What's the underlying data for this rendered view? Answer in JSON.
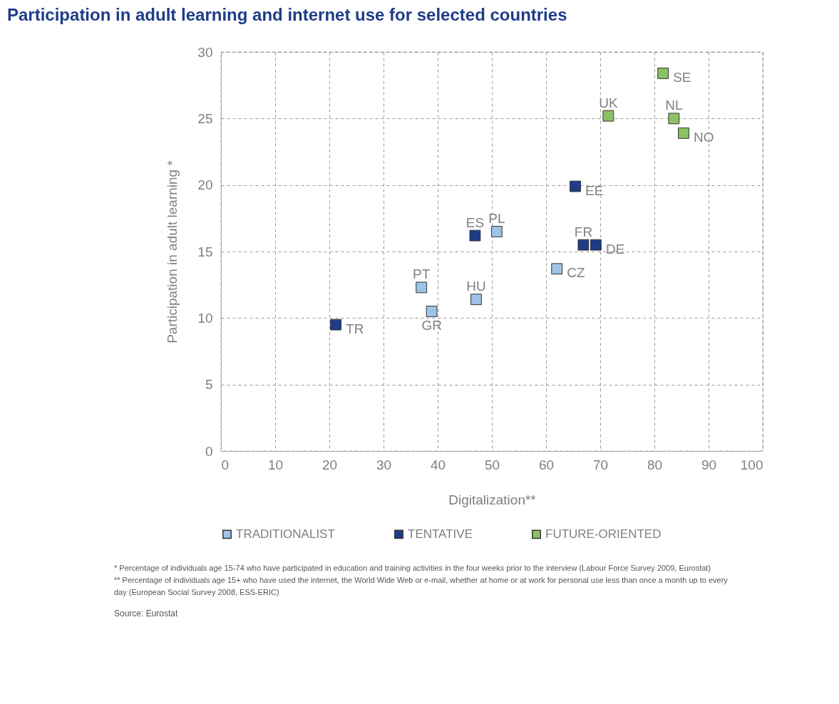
{
  "chart_data": {
    "type": "scatter",
    "title": "Participation in adult learning and internet use for selected countries",
    "xlabel": "Digitalization**",
    "ylabel": "Participation in adult learning *",
    "xlim": [
      0,
      100
    ],
    "xticks": [
      0,
      10,
      20,
      30,
      40,
      50,
      60,
      70,
      80,
      90,
      100
    ],
    "ylim": [
      0,
      30
    ],
    "yticks": [
      0,
      5,
      10,
      15,
      20,
      25,
      30
    ],
    "grid": true,
    "marker": "square",
    "legend": "bottom left",
    "series": [
      {
        "name": "TRADITIONALIST",
        "color": "#9dc3e6",
        "x": [
          37.0,
          38.9,
          47.1,
          50.9,
          62.0
        ],
        "values": [
          12.3,
          10.5,
          11.4,
          16.5,
          13.7
        ],
        "value_labels": [
          "PT",
          "GR",
          "HU",
          "PL",
          "CZ"
        ]
      },
      {
        "name": "TENTATIVE",
        "color": "#1f3c88",
        "x": [
          21.2,
          46.9,
          65.4,
          66.9,
          69.2
        ],
        "values": [
          9.5,
          16.2,
          19.9,
          15.5,
          15.5
        ],
        "value_labels": [
          "TR",
          "ES",
          "EE",
          "FR",
          "DE"
        ]
      },
      {
        "name": "FUTURE-ORIENTED",
        "color": "#8cc265",
        "x": [
          71.5,
          81.6,
          83.6,
          85.4
        ],
        "values": [
          25.2,
          28.4,
          25.0,
          23.9
        ],
        "value_labels": [
          "UK",
          "SE",
          "NL",
          "NO"
        ]
      }
    ],
    "annotations": [
      "*    Percentage of individuals age 15-74 who have participated  in education and training activities in the four weeks prior to the interview (Labour Force Survey 2009, Eurostat)",
      "**  Percentage of individuals age 15+ who have used the internet, the World Wide Web or e-mail, whether at home or at work for personal use less than once a month up to every",
      "      day (European Social Survey 2008, ESS-ERIC)",
      "Source: Eurostat"
    ]
  }
}
